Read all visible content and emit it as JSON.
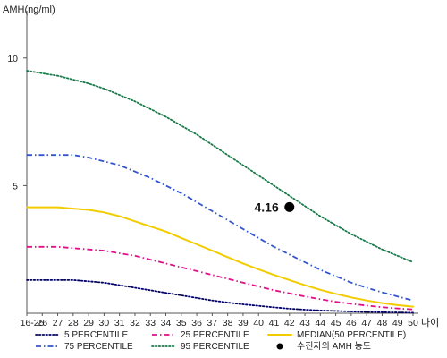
{
  "chart_data": {
    "type": "line",
    "ylabel": "AMH(ng/ml)",
    "xlabel": "나이",
    "ylim": [
      0,
      11.5
    ],
    "yticks": [
      5,
      10
    ],
    "categories": [
      "16-25",
      "26",
      "27",
      "28",
      "29",
      "30",
      "31",
      "32",
      "33",
      "34",
      "35",
      "36",
      "37",
      "38",
      "39",
      "40",
      "41",
      "42",
      "43",
      "44",
      "45",
      "46",
      "47",
      "48",
      "49",
      "50"
    ],
    "series": [
      {
        "name": "5 PERCENTILE",
        "color": "#000066",
        "style": "dotted",
        "values": [
          1.3,
          1.3,
          1.3,
          1.3,
          1.25,
          1.2,
          1.1,
          1.0,
          0.9,
          0.8,
          0.7,
          0.6,
          0.5,
          0.42,
          0.35,
          0.29,
          0.23,
          0.18,
          0.14,
          0.11,
          0.09,
          0.07,
          0.05,
          0.04,
          0.03,
          0.02
        ]
      },
      {
        "name": "25 PERCENTILE",
        "color": "#dd1188",
        "style": "dashdot",
        "values": [
          2.6,
          2.6,
          2.6,
          2.55,
          2.5,
          2.45,
          2.35,
          2.25,
          2.1,
          1.95,
          1.8,
          1.65,
          1.5,
          1.35,
          1.2,
          1.05,
          0.9,
          0.78,
          0.66,
          0.55,
          0.45,
          0.37,
          0.3,
          0.24,
          0.19,
          0.15
        ]
      },
      {
        "name": "MEDIAN(50 PERCENTILE)",
        "color": "#f2cc00",
        "style": "solid",
        "values": [
          4.15,
          4.15,
          4.15,
          4.1,
          4.05,
          3.95,
          3.8,
          3.6,
          3.4,
          3.2,
          2.95,
          2.7,
          2.45,
          2.2,
          1.95,
          1.72,
          1.5,
          1.3,
          1.1,
          0.92,
          0.76,
          0.62,
          0.5,
          0.4,
          0.32,
          0.26
        ]
      },
      {
        "name": "75 PERCENTILE",
        "color": "#3355cc",
        "style": "dashdot",
        "values": [
          6.2,
          6.2,
          6.2,
          6.2,
          6.1,
          5.95,
          5.8,
          5.55,
          5.3,
          5.0,
          4.7,
          4.35,
          4.0,
          3.65,
          3.3,
          2.95,
          2.6,
          2.3,
          2.0,
          1.7,
          1.45,
          1.2,
          1.0,
          0.82,
          0.66,
          0.5
        ]
      },
      {
        "name": "95 PERCENTILE",
        "color": "#1a7a4a",
        "style": "dotted",
        "values": [
          9.5,
          9.4,
          9.3,
          9.15,
          9.0,
          8.8,
          8.55,
          8.3,
          8.0,
          7.7,
          7.35,
          7.0,
          6.6,
          6.2,
          5.8,
          5.4,
          5.0,
          4.6,
          4.2,
          3.8,
          3.45,
          3.1,
          2.8,
          2.5,
          2.25,
          2.0
        ]
      }
    ],
    "marker": {
      "name": "수진자의 AMH 농도",
      "x": "42",
      "y": 4.16,
      "label": "4.16",
      "color": "#000000"
    },
    "legend": {
      "placement": "bottom"
    },
    "grid": false
  }
}
